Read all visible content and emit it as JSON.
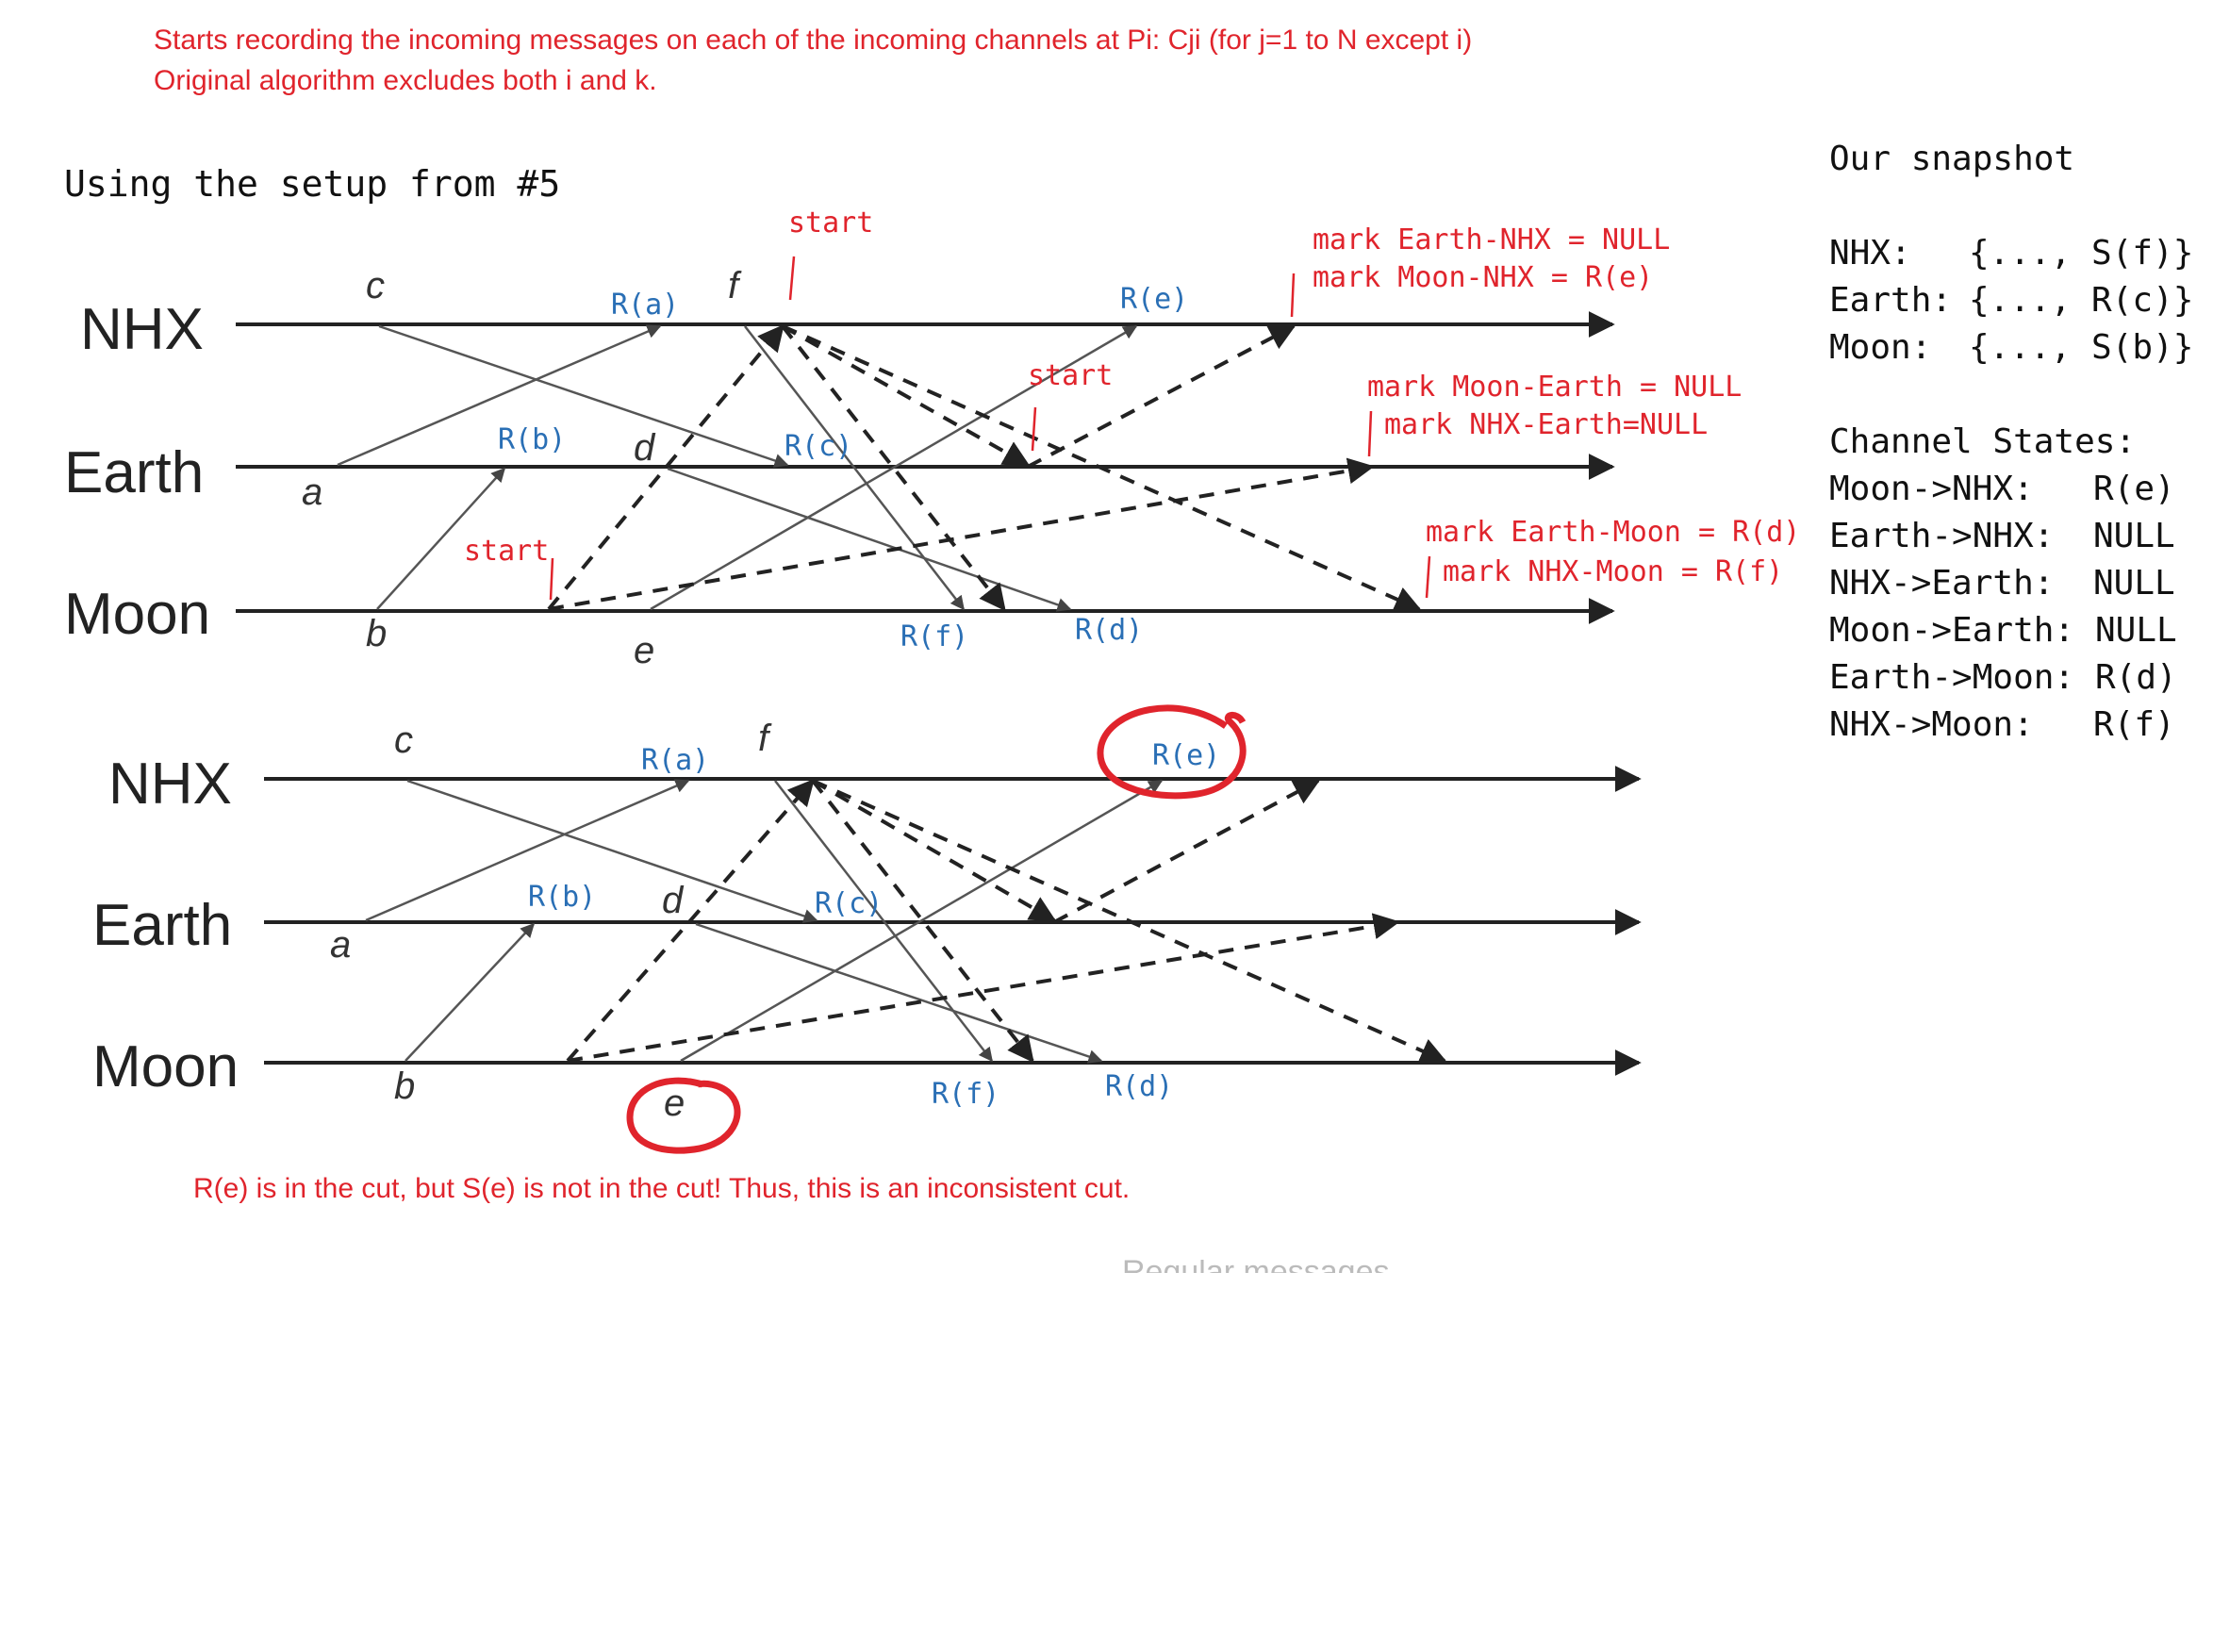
{
  "top_note": {
    "line1": "Starts recording the incoming messages on each of the incoming channels at Pi: Cji (for j=1 to N except i)",
    "line2": "Original algorithm excludes both i and k."
  },
  "heading": "Using the setup from #5",
  "bottom_note": "R(e) is in the cut, but S(e) is not in the cut! Thus, this is an inconsistent cut.",
  "faded_text": "Regular messages",
  "processes": [
    "NHX",
    "Earth",
    "Moon"
  ],
  "events": {
    "a": "a",
    "b": "b",
    "c": "c",
    "d": "d",
    "e": "e",
    "f": "f"
  },
  "receive_labels": {
    "a": "R(a)",
    "b": "R(b)",
    "c": "R(c)",
    "d": "R(d)",
    "e": "R(e)",
    "f": "R(f)"
  },
  "start_labels": [
    "start",
    "start",
    "start"
  ],
  "marks": {
    "nhx_1": "mark Earth-NHX = NULL",
    "nhx_2": "mark Moon-NHX = R(e)",
    "earth_1": "mark Moon-Earth = NULL",
    "earth_2": "mark NHX-Earth=NULL",
    "moon_1": "mark Earth-Moon = R(d)",
    "moon_2": "mark NHX-Moon = R(f)"
  },
  "snapshot": {
    "title": "Our snapshot",
    "rows": [
      {
        "name": "NHX:",
        "value": "{..., S(f)}"
      },
      {
        "name": "Earth:",
        "value": "{..., R(c)}"
      },
      {
        "name": "Moon:",
        "value": "{..., S(b)}"
      }
    ]
  },
  "channel_states": {
    "title": "Channel States:",
    "rows": [
      {
        "name": "Moon->NHX:",
        "value": "R(e)"
      },
      {
        "name": "Earth->NHX:",
        "value": "NULL"
      },
      {
        "name": "NHX->Earth:",
        "value": "NULL"
      },
      {
        "name": "Moon->Earth:",
        "value": "NULL"
      },
      {
        "name": "Earth->Moon:",
        "value": "R(d)"
      },
      {
        "name": "NHX->Moon:",
        "value": "R(f)"
      }
    ]
  },
  "colors": {
    "annotation_red": "#e0242c",
    "label_blue": "#2a6fb5",
    "line": "#333333"
  }
}
